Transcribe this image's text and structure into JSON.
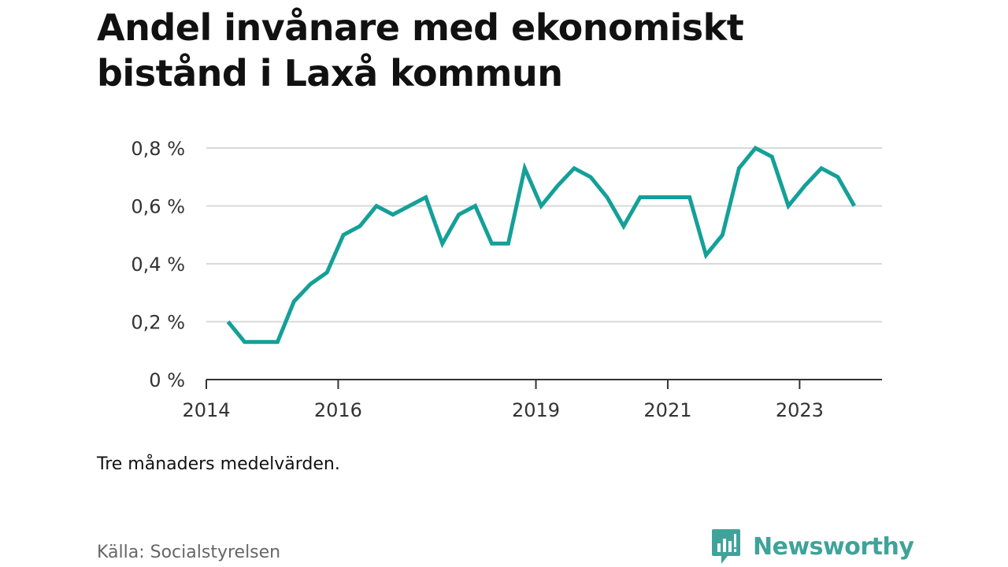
{
  "title": "Andel invånare med ekonomiskt bistånd i Laxå kommun",
  "note": "Tre månaders medelvärden.",
  "source": "Källa: Socialstyrelsen",
  "brand": {
    "name": "Newsworthy",
    "icon": "newsworthy-logo-icon",
    "color": "#3fa39a"
  },
  "chart_data": {
    "type": "line",
    "title": "Andel invånare med ekonomiskt bistånd i Laxå kommun",
    "xlabel": "",
    "ylabel": "",
    "xlim": [
      2014,
      2024.25
    ],
    "ylim": [
      0,
      0.8
    ],
    "grid": true,
    "line_color": "#14a098",
    "y_ticks": [
      {
        "value": 0,
        "label": "0 %"
      },
      {
        "value": 0.2,
        "label": "0,2 %"
      },
      {
        "value": 0.4,
        "label": "0,4 %"
      },
      {
        "value": 0.6,
        "label": "0,6 %"
      },
      {
        "value": 0.8,
        "label": "0,8 %"
      }
    ],
    "x_ticks": [
      {
        "value": 2014,
        "label": "2014"
      },
      {
        "value": 2016,
        "label": "2016"
      },
      {
        "value": 2019,
        "label": "2019"
      },
      {
        "value": 2021,
        "label": "2021"
      },
      {
        "value": 2023,
        "label": "2023"
      }
    ],
    "series": [
      {
        "x": [
          2014.33,
          2014.58,
          2014.83,
          2015.08,
          2015.33,
          2015.58,
          2015.83,
          2016.08,
          2016.33,
          2016.58,
          2016.83,
          2017.08,
          2017.33,
          2017.58,
          2017.83,
          2018.08,
          2018.33,
          2018.58,
          2018.83,
          2019.08,
          2019.33,
          2019.58,
          2019.83,
          2020.08,
          2020.33,
          2020.58,
          2020.83,
          2021.08,
          2021.33,
          2021.58,
          2021.83,
          2022.08,
          2022.33,
          2022.58,
          2022.83,
          2023.08,
          2023.33,
          2023.58,
          2023.83
        ],
        "values": [
          0.2,
          0.13,
          0.13,
          0.13,
          0.27,
          0.33,
          0.37,
          0.5,
          0.53,
          0.6,
          0.57,
          0.6,
          0.63,
          0.47,
          0.57,
          0.6,
          0.47,
          0.47,
          0.73,
          0.6,
          0.67,
          0.73,
          0.7,
          0.63,
          0.53,
          0.63,
          0.63,
          0.63,
          0.63,
          0.43,
          0.5,
          0.73,
          0.8,
          0.77,
          0.6,
          0.67,
          0.73,
          0.7,
          0.6
        ]
      }
    ]
  }
}
